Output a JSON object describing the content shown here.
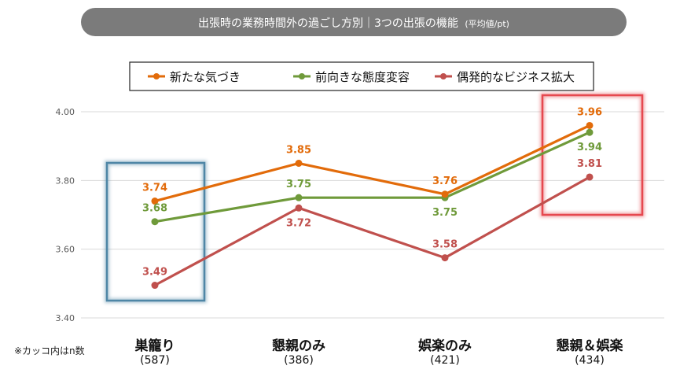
{
  "header": {
    "title": "出張時の業務時間外の過ごし方別｜3つの出張の機能",
    "subtitle": "(平均値/pt)"
  },
  "footnote": "※カッコ内はn数",
  "colors": {
    "header_bg": "#7b7b7b",
    "header_text": "#ffffff",
    "grid": "#d9d9d9",
    "tick_text": "#595959",
    "highlight_blue": "#4f86a6",
    "highlight_red": "#e6484f"
  },
  "chart_data": {
    "type": "line",
    "title": "出張時の業務時間外の過ごし方別｜3つの出張の機能 (平均値/pt)",
    "ylim": [
      3.4,
      4.0
    ],
    "yticks": [
      "3.40",
      "3.60",
      "3.80",
      "4.00"
    ],
    "grid": true,
    "legend_position": "top",
    "categories": [
      {
        "label": "巣籠り",
        "n": "(587)"
      },
      {
        "label": "懇親のみ",
        "n": "(386)"
      },
      {
        "label": "娯楽のみ",
        "n": "(421)"
      },
      {
        "label": "懇親＆娯楽",
        "n": "(434)"
      }
    ],
    "series": [
      {
        "name": "新たな気づき",
        "color": "#e26b0a",
        "values": [
          3.74,
          3.85,
          3.76,
          3.96
        ],
        "labels": [
          "3.74",
          "3.85",
          "3.76",
          "3.96"
        ],
        "label_side": [
          "above",
          "above",
          "above",
          "above"
        ]
      },
      {
        "name": "前向きな態度変容",
        "color": "#6f9a3a",
        "values": [
          3.68,
          3.75,
          3.75,
          3.94
        ],
        "labels": [
          "3.68",
          "3.75",
          "3.75",
          "3.94"
        ],
        "label_side": [
          "above",
          "above",
          "below",
          "below"
        ]
      },
      {
        "name": "偶発的なビジネス拡大",
        "color": "#c0504d",
        "values": [
          3.495,
          3.72,
          3.575,
          3.81
        ],
        "labels": [
          "3.49",
          "3.72",
          "3.58",
          "3.81"
        ],
        "label_side": [
          "above",
          "below",
          "above",
          "above"
        ]
      }
    ],
    "highlights": [
      {
        "category_index": 0,
        "color": "#4f86a6",
        "label": "巣籠り"
      },
      {
        "category_index": 3,
        "color": "#e6484f",
        "label": "懇親＆娯楽"
      }
    ]
  }
}
